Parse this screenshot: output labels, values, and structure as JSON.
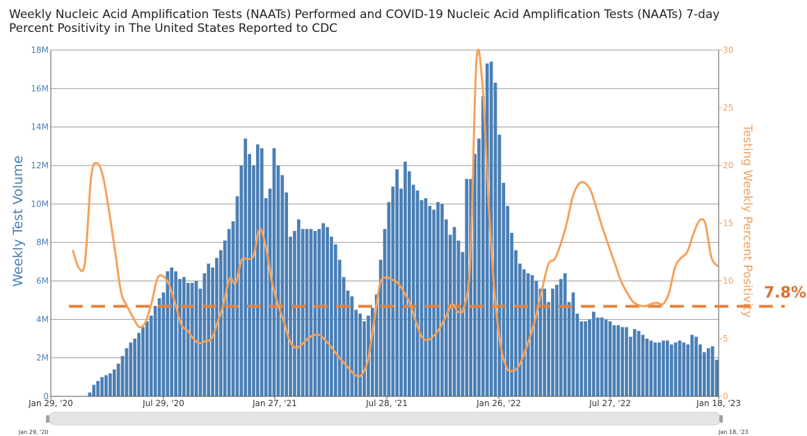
{
  "chart_data": {
    "type": "bar",
    "title": "Weekly Nucleic Acid Amplification Tests (NAATs) Performed and COVID-19 Nucleic Acid Amplification Tests (NAATs) 7-day Percent Positivity in The United States Reported to CDC",
    "ylabel": "Weekly Test Volume",
    "y2label": "Testing Weekly Percent Positivity",
    "ylim": [
      0,
      18000000
    ],
    "y2lim": [
      0,
      30
    ],
    "y_ticks": [
      "0",
      "2M",
      "4M",
      "6M",
      "8M",
      "10M",
      "12M",
      "14M",
      "16M",
      "18M"
    ],
    "y2_ticks": [
      "0",
      "5",
      "10",
      "15",
      "20",
      "25",
      "30"
    ],
    "x_ticks": [
      "Jan 29, '20",
      "Jul 29, '20",
      "Jan 27, '21",
      "Jul 28, '21",
      "Jan 26, '22",
      "Jul 27, '22",
      "Jan 18, '23"
    ],
    "colors": {
      "bars": "#4a7fb5",
      "line": "#f5a05a",
      "reference": "#e8803a"
    },
    "reference_line": {
      "value": 7.8,
      "label": "7.8%"
    },
    "navigator": {
      "start_label": "Jan 29, '20",
      "end_label": "Jan 18, '23"
    },
    "series": [
      {
        "type": "bar",
        "values": [
          0,
          0,
          0,
          0,
          0,
          0,
          0,
          0,
          0,
          0.2,
          0.6,
          0.8,
          1,
          1.1,
          1.2,
          1.4,
          1.7,
          2.1,
          2.5,
          2.8,
          3,
          3.3,
          3.6,
          3.9,
          4.2,
          4.7,
          5.1,
          5.4,
          6.5,
          6.7,
          6.5,
          6.1,
          6.2,
          5.9,
          5.9,
          6,
          5.6,
          6.4,
          6.9,
          6.7,
          7.2,
          7.6,
          8.1,
          8.7,
          9.1,
          10.4,
          12,
          13.4,
          12.6,
          12,
          13.1,
          12.9,
          10.3,
          10.8,
          12.9,
          12,
          11.5,
          10.6,
          8.3,
          8.6,
          9.2,
          8.7,
          8.7,
          8.7,
          8.6,
          8.7,
          9,
          8.8,
          8.3,
          7.9,
          7.1,
          6.2,
          5.5,
          5.2,
          4.5,
          4.3,
          3.9,
          4.2,
          4.6,
          5.3,
          7.1,
          8.7,
          10.1,
          10.9,
          11.8,
          10.8,
          12.2,
          11.7,
          11,
          10.7,
          10.2,
          10.3,
          9.9,
          9.7,
          10.1,
          10,
          9.2,
          8.4,
          8.8,
          8.1,
          7.5,
          11.3,
          11.3,
          12.6,
          13.4,
          15.6,
          17.3,
          17.4,
          16.3,
          13.6,
          11.1,
          9.9,
          8.5,
          7.6,
          6.9,
          6.6,
          6.4,
          6.3,
          6.0,
          5.6,
          5.6,
          4.9,
          5.6,
          5.8,
          6.1,
          6.4,
          4.9,
          5.4,
          4.3,
          3.9,
          3.9,
          4,
          4.4,
          4.1,
          4.1,
          4,
          3.9,
          3.7,
          3.7,
          3.6,
          3.6,
          3.1,
          3.5,
          3.4,
          3.2,
          3,
          2.9,
          2.8,
          2.8,
          2.9,
          2.9,
          2.7,
          2.8,
          2.9,
          2.8,
          2.7,
          3.2,
          3.1,
          2.7,
          2.3,
          2.5,
          2.6,
          1.9
        ]
      },
      {
        "type": "line",
        "points": [
          [
            0,
            12.6
          ],
          [
            1,
            11.1
          ],
          [
            2,
            11.7
          ],
          [
            3,
            19.0
          ],
          [
            4,
            20.2
          ],
          [
            5,
            19.0
          ],
          [
            6,
            16.0
          ],
          [
            7,
            12.5
          ],
          [
            8,
            9.0
          ],
          [
            9,
            7.8
          ],
          [
            10,
            6.8
          ],
          [
            11,
            6.0
          ],
          [
            12,
            6.4
          ],
          [
            13,
            8.0
          ],
          [
            14,
            10.2
          ],
          [
            15,
            10.4
          ],
          [
            16,
            9.6
          ],
          [
            17,
            8.0
          ],
          [
            18,
            6.2
          ],
          [
            19,
            5.7
          ],
          [
            20,
            5.0
          ],
          [
            21,
            4.6
          ],
          [
            22,
            4.8
          ],
          [
            23,
            5.0
          ],
          [
            24,
            6.4
          ],
          [
            25,
            8.0
          ],
          [
            26,
            10.2
          ],
          [
            27,
            9.8
          ],
          [
            28,
            11.8
          ],
          [
            29,
            11.9
          ],
          [
            30,
            12.2
          ],
          [
            31,
            14.5
          ],
          [
            32,
            13.0
          ],
          [
            33,
            10.0
          ],
          [
            34,
            8.0
          ],
          [
            35,
            6.5
          ],
          [
            36,
            4.8
          ],
          [
            37,
            4.2
          ],
          [
            38,
            4.5
          ],
          [
            39,
            5.0
          ],
          [
            40,
            5.3
          ],
          [
            41,
            5.3
          ],
          [
            42,
            4.8
          ],
          [
            43,
            4.2
          ],
          [
            44,
            3.5
          ],
          [
            45,
            2.9
          ],
          [
            46,
            2.3
          ],
          [
            47,
            1.8
          ],
          [
            48,
            1.9
          ],
          [
            49,
            3.2
          ],
          [
            50,
            6.5
          ],
          [
            51,
            9.8
          ],
          [
            52,
            10.3
          ],
          [
            53,
            10.1
          ],
          [
            54,
            9.8
          ],
          [
            55,
            9.0
          ],
          [
            56,
            8.0
          ],
          [
            57,
            6.4
          ],
          [
            58,
            5.1
          ],
          [
            59,
            4.9
          ],
          [
            60,
            5.3
          ],
          [
            61,
            6.0
          ],
          [
            62,
            7.0
          ],
          [
            63,
            8.0
          ],
          [
            64,
            7.3
          ],
          [
            65,
            7.8
          ],
          [
            66,
            12.0
          ],
          [
            67,
            29.0
          ],
          [
            68,
            27.0
          ],
          [
            69,
            17.0
          ],
          [
            70,
            9.0
          ],
          [
            71,
            4.5
          ],
          [
            72,
            2.5
          ],
          [
            73,
            2.2
          ],
          [
            74,
            2.6
          ],
          [
            75,
            3.8
          ],
          [
            76,
            5.3
          ],
          [
            77,
            7.2
          ],
          [
            78,
            9.5
          ],
          [
            79,
            11.5
          ],
          [
            80,
            11.9
          ],
          [
            81,
            13.2
          ],
          [
            82,
            15.0
          ],
          [
            83,
            17.3
          ],
          [
            84,
            18.4
          ],
          [
            85,
            18.5
          ],
          [
            86,
            17.8
          ],
          [
            87,
            16.2
          ],
          [
            88,
            14.5
          ],
          [
            89,
            13.0
          ],
          [
            90,
            11.5
          ],
          [
            91,
            10.0
          ],
          [
            92,
            9.0
          ],
          [
            93,
            8.2
          ],
          [
            94,
            7.9
          ],
          [
            95,
            7.8
          ],
          [
            96,
            8.0
          ],
          [
            97,
            8.1
          ],
          [
            98,
            8.0
          ],
          [
            99,
            9.0
          ],
          [
            100,
            11.2
          ],
          [
            101,
            12.0
          ],
          [
            102,
            12.5
          ],
          [
            103,
            14.0
          ],
          [
            104,
            15.2
          ],
          [
            105,
            15.0
          ],
          [
            106,
            12.1
          ],
          [
            107,
            11.3
          ]
        ]
      }
    ]
  }
}
